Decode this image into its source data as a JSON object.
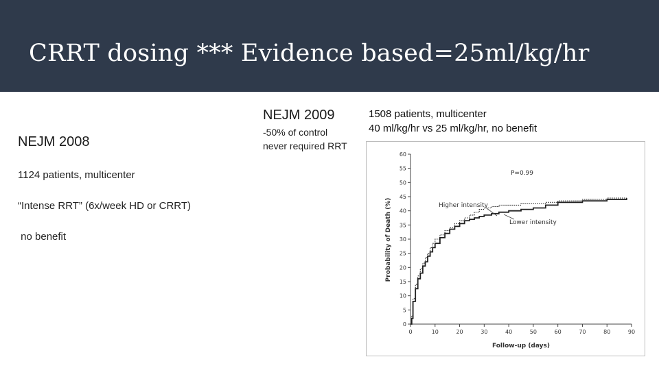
{
  "slide": {
    "title": "CRRT dosing *** Evidence based=25ml/kg/hr"
  },
  "left": {
    "heading": "NEJM 2008",
    "lines": [
      "1124 patients, multicenter",
      "“Intense RRT” (6x/week HD or CRRT)",
      " no benefit"
    ]
  },
  "middle": {
    "heading": "NEJM 2009",
    "notes": [
      "-50% of control",
      "never required RRT"
    ]
  },
  "right": {
    "notes": [
      "1508 patients, multicenter",
      "40 ml/kg/hr vs 25 ml/kg/hr, no benefit"
    ]
  },
  "colors": {
    "header_bg": "#2f3a4b",
    "title_text": "#ffffff",
    "body_text": "#1a1a1a"
  },
  "chart_data": {
    "type": "line",
    "xlabel": "Follow-up (days)",
    "ylabel": "Probability of Death (%)",
    "xlim": [
      0,
      90
    ],
    "ylim": [
      0,
      60
    ],
    "xticks": [
      0,
      10,
      20,
      30,
      40,
      50,
      60,
      70,
      80,
      90
    ],
    "yticks": [
      0,
      5,
      10,
      15,
      20,
      25,
      30,
      35,
      40,
      45,
      50,
      55,
      60
    ],
    "annotations": [
      "P=0.99"
    ],
    "series": [
      {
        "name": "Higher intensity",
        "style": "dotted",
        "x": [
          0,
          0.5,
          1,
          2,
          3,
          4,
          5,
          6,
          7,
          8,
          9,
          10,
          12,
          14,
          16,
          18,
          20,
          22,
          24,
          26,
          28,
          30,
          33,
          36,
          40,
          45,
          50,
          55,
          60,
          70,
          80,
          88
        ],
        "y": [
          0,
          3,
          9,
          14,
          17,
          19.5,
          21.5,
          23.5,
          25,
          27,
          28.5,
          30,
          31.5,
          33,
          34,
          35.5,
          36.5,
          37.5,
          38.5,
          39.5,
          40.5,
          41,
          41.5,
          42,
          42,
          42.5,
          42.5,
          43,
          43.5,
          44,
          44.5,
          44.5
        ]
      },
      {
        "name": "Lower intensity",
        "style": "solid",
        "x": [
          0,
          0.5,
          1,
          2,
          3,
          4,
          5,
          6,
          7,
          8,
          9,
          10,
          12,
          14,
          16,
          18,
          20,
          22,
          24,
          26,
          28,
          30,
          33,
          36,
          40,
          45,
          50,
          55,
          60,
          70,
          80,
          88
        ],
        "y": [
          0,
          2,
          8,
          12.5,
          16,
          18,
          20.5,
          22,
          24,
          25.5,
          27,
          28.5,
          30.5,
          32,
          33.5,
          34.5,
          35.5,
          36.5,
          37,
          37.5,
          38,
          38.5,
          39,
          39.5,
          40,
          40.5,
          41,
          42,
          43,
          43.5,
          44,
          44.5
        ]
      }
    ]
  }
}
